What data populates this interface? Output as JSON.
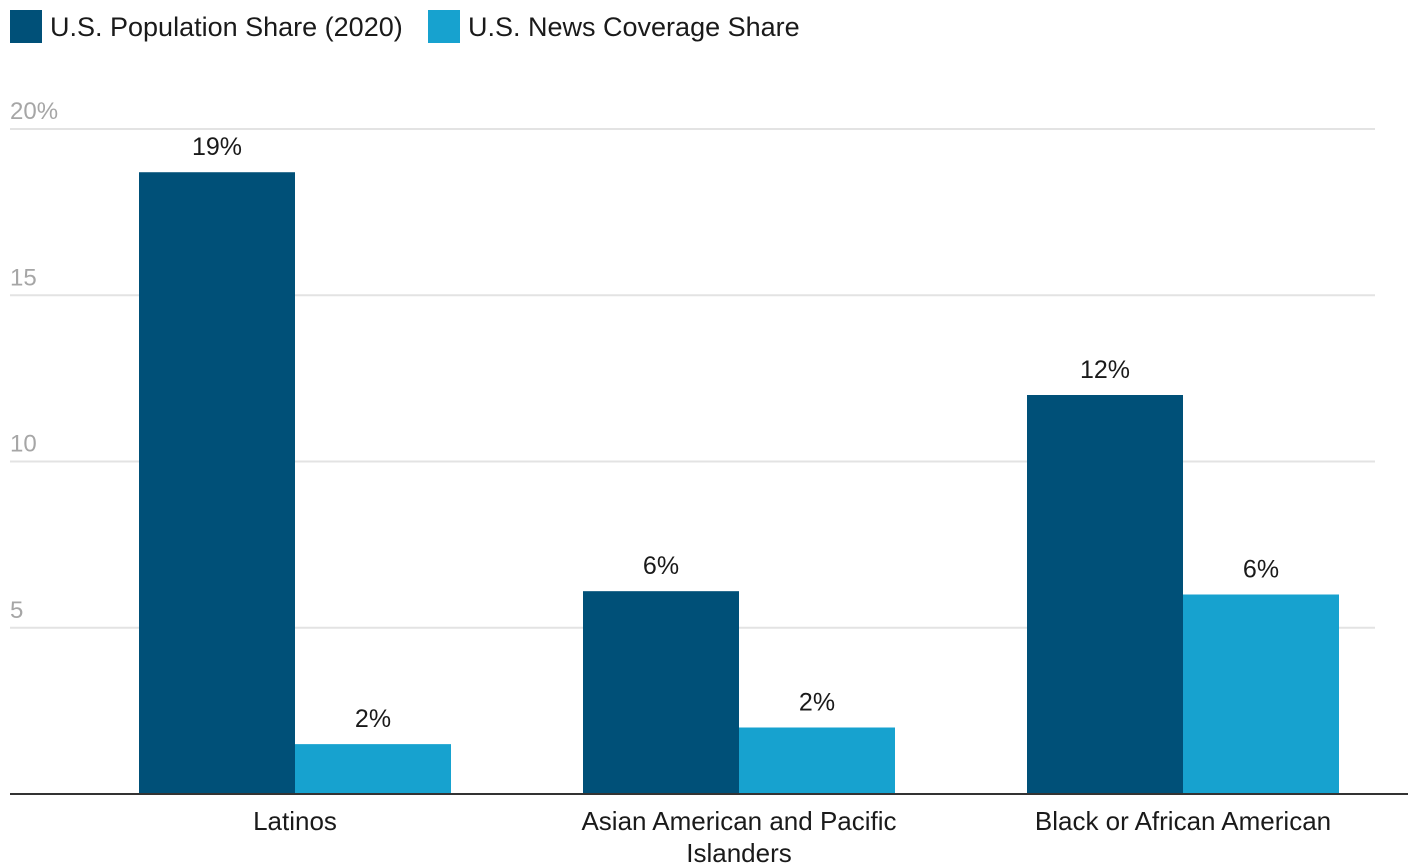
{
  "chart_data": {
    "type": "bar",
    "title": "",
    "xlabel": "",
    "ylabel": "",
    "categories": [
      [
        "Latinos"
      ],
      [
        "Asian American and Pacific",
        "Islanders"
      ],
      [
        "Black or African American"
      ]
    ],
    "series": [
      {
        "name": "U.S. Population Share (2020)",
        "color": "#005078",
        "values": [
          18.7,
          6.1,
          12.0
        ],
        "labels": [
          "19%",
          "6%",
          "12%"
        ]
      },
      {
        "name": "U.S. News Coverage Share",
        "color": "#17a2cf",
        "values": [
          1.5,
          2.0,
          6.0
        ],
        "labels": [
          "2%",
          "2%",
          "6%"
        ]
      }
    ],
    "ylim": [
      0,
      20
    ],
    "yticks": [
      {
        "value": 5,
        "label": "5"
      },
      {
        "value": 10,
        "label": "10"
      },
      {
        "value": 15,
        "label": "15"
      },
      {
        "value": 20,
        "label": "20%"
      }
    ],
    "grid": true,
    "legend_position": "top-left"
  }
}
